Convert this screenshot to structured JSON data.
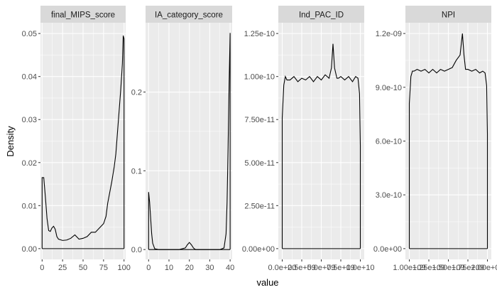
{
  "chart_data": {
    "type": "line",
    "xlabel": "value",
    "ylabel": "Density",
    "facets": [
      {
        "name": "final_MIPS_score",
        "xlim": [
          -2,
          102
        ],
        "ylim": [
          -0.0025,
          0.0525
        ],
        "x_ticks": [
          0,
          25,
          50,
          75,
          100
        ],
        "x_tick_labels": [
          "0",
          "25",
          "50",
          "75",
          "100"
        ],
        "y_ticks": [
          0,
          0.01,
          0.02,
          0.03,
          0.04,
          0.05
        ],
        "y_tick_labels": [
          "0.00",
          "0.01",
          "0.02",
          "0.03",
          "0.04",
          "0.05"
        ],
        "x": [
          0,
          2,
          4,
          6,
          8,
          10,
          12,
          14,
          16,
          18,
          20,
          25,
          30,
          35,
          40,
          45,
          50,
          55,
          60,
          65,
          70,
          75,
          78,
          80,
          85,
          88,
          90,
          92,
          94,
          96,
          98,
          99,
          100
        ],
        "y": [
          0.0165,
          0.0165,
          0.012,
          0.007,
          0.0042,
          0.004,
          0.0048,
          0.0052,
          0.0045,
          0.0028,
          0.0022,
          0.0019,
          0.002,
          0.0024,
          0.0032,
          0.0022,
          0.0024,
          0.0028,
          0.0038,
          0.0038,
          0.0048,
          0.0058,
          0.0075,
          0.0105,
          0.0155,
          0.019,
          0.022,
          0.027,
          0.032,
          0.037,
          0.043,
          0.0495,
          0.0488
        ]
      },
      {
        "name": "IA_category_score",
        "xlim": [
          -1.5,
          41
        ],
        "ylim": [
          -0.0125,
          0.288
        ],
        "x_ticks": [
          0,
          10,
          20,
          30,
          40
        ],
        "x_tick_labels": [
          "0",
          "10",
          "20",
          "30",
          "40"
        ],
        "y_ticks": [
          0,
          0.1,
          0.2
        ],
        "y_tick_labels": [
          "0.0",
          "0.1",
          "0.2"
        ],
        "x": [
          0,
          0.5,
          1,
          1.5,
          2,
          3,
          5,
          10,
          15,
          18,
          19,
          20,
          21,
          22,
          23,
          25,
          30,
          35,
          37,
          38,
          38.5,
          39,
          39.5,
          40
        ],
        "y": [
          0.073,
          0.06,
          0.04,
          0.02,
          0.008,
          0.001,
          0,
          0,
          0,
          0.002,
          0.006,
          0.009,
          0.006,
          0.002,
          0,
          0,
          0,
          0,
          0.002,
          0.02,
          0.06,
          0.13,
          0.21,
          0.275
        ]
      },
      {
        "name": "Ind_PAC_ID",
        "xlim": [
          -0.05,
          1.05
        ],
        "ylim": [
          -6.25e-12,
          1.3125e-10
        ],
        "x_ticks": [
          0,
          0.25,
          0.5,
          0.75,
          1.0
        ],
        "x_tick_labels": [
          "0.0e+00",
          "2.5e+09",
          "5.0e+09",
          "7.5e+09",
          "1.0e+10"
        ],
        "y_ticks": [
          0,
          2.5e-11,
          5e-11,
          7.5e-11,
          1e-10,
          1.25e-10
        ],
        "y_tick_labels": [
          "0.00e+00",
          "2.50e-11",
          "5.00e-11",
          "7.50e-11",
          "1.00e-10",
          "1.25e-10"
        ],
        "x": [
          0,
          0.02,
          0.04,
          0.06,
          0.1,
          0.15,
          0.2,
          0.25,
          0.3,
          0.35,
          0.4,
          0.45,
          0.5,
          0.55,
          0.6,
          0.63,
          0.65,
          0.67,
          0.7,
          0.72,
          0.75,
          0.8,
          0.85,
          0.9,
          0.94,
          0.97,
          0.99,
          1.0
        ],
        "y": [
          7.6e-11,
          9.5e-11,
          1e-10,
          9.8e-11,
          9.8e-11,
          1e-10,
          9.7e-11,
          9.9e-11,
          9.8e-11,
          1e-10,
          9.7e-11,
          1e-10,
          9.8e-11,
          1.01e-10,
          9.9e-11,
          1.05e-10,
          1.19e-10,
          1.05e-10,
          9.9e-11,
          9.9e-11,
          1e-10,
          9.8e-11,
          1e-10,
          9.7e-11,
          1e-10,
          9.9e-11,
          9e-11,
          6e-11
        ]
      },
      {
        "name": "NPI",
        "xlim": [
          -0.05,
          1.05
        ],
        "ylim": [
          -6e-11,
          1.26e-09
        ],
        "x_ticks": [
          0,
          0.25,
          0.5,
          0.75,
          1.0
        ],
        "x_tick_labels": [
          "1.00e+09",
          "1.25e+09",
          "1.50e+09",
          "1.75e+09",
          "2.00e+09"
        ],
        "y_ticks": [
          0,
          3e-10,
          6e-10,
          9e-10,
          1.2e-09
        ],
        "y_tick_labels": [
          "0.0e+00",
          "3.0e-10",
          "6.0e-10",
          "9.0e-10",
          "1.2e-09"
        ],
        "x": [
          0,
          0.02,
          0.04,
          0.06,
          0.1,
          0.15,
          0.2,
          0.25,
          0.3,
          0.35,
          0.4,
          0.45,
          0.5,
          0.55,
          0.6,
          0.65,
          0.68,
          0.7,
          0.72,
          0.75,
          0.8,
          0.85,
          0.9,
          0.94,
          0.97,
          0.99,
          1.0
        ],
        "y": [
          8.1e-10,
          9.6e-10,
          9.9e-10,
          9.9e-10,
          1e-09,
          9.9e-10,
          1e-09,
          9.8e-10,
          1e-09,
          9.8e-10,
          1e-09,
          9.9e-10,
          1e-09,
          1.01e-09,
          1.05e-09,
          1.08e-09,
          1.2e-09,
          1.08e-09,
          1e-09,
          1e-09,
          9.9e-10,
          1e-09,
          9.8e-10,
          9.9e-10,
          9.8e-10,
          9.1e-10,
          6.4e-10
        ]
      }
    ]
  }
}
